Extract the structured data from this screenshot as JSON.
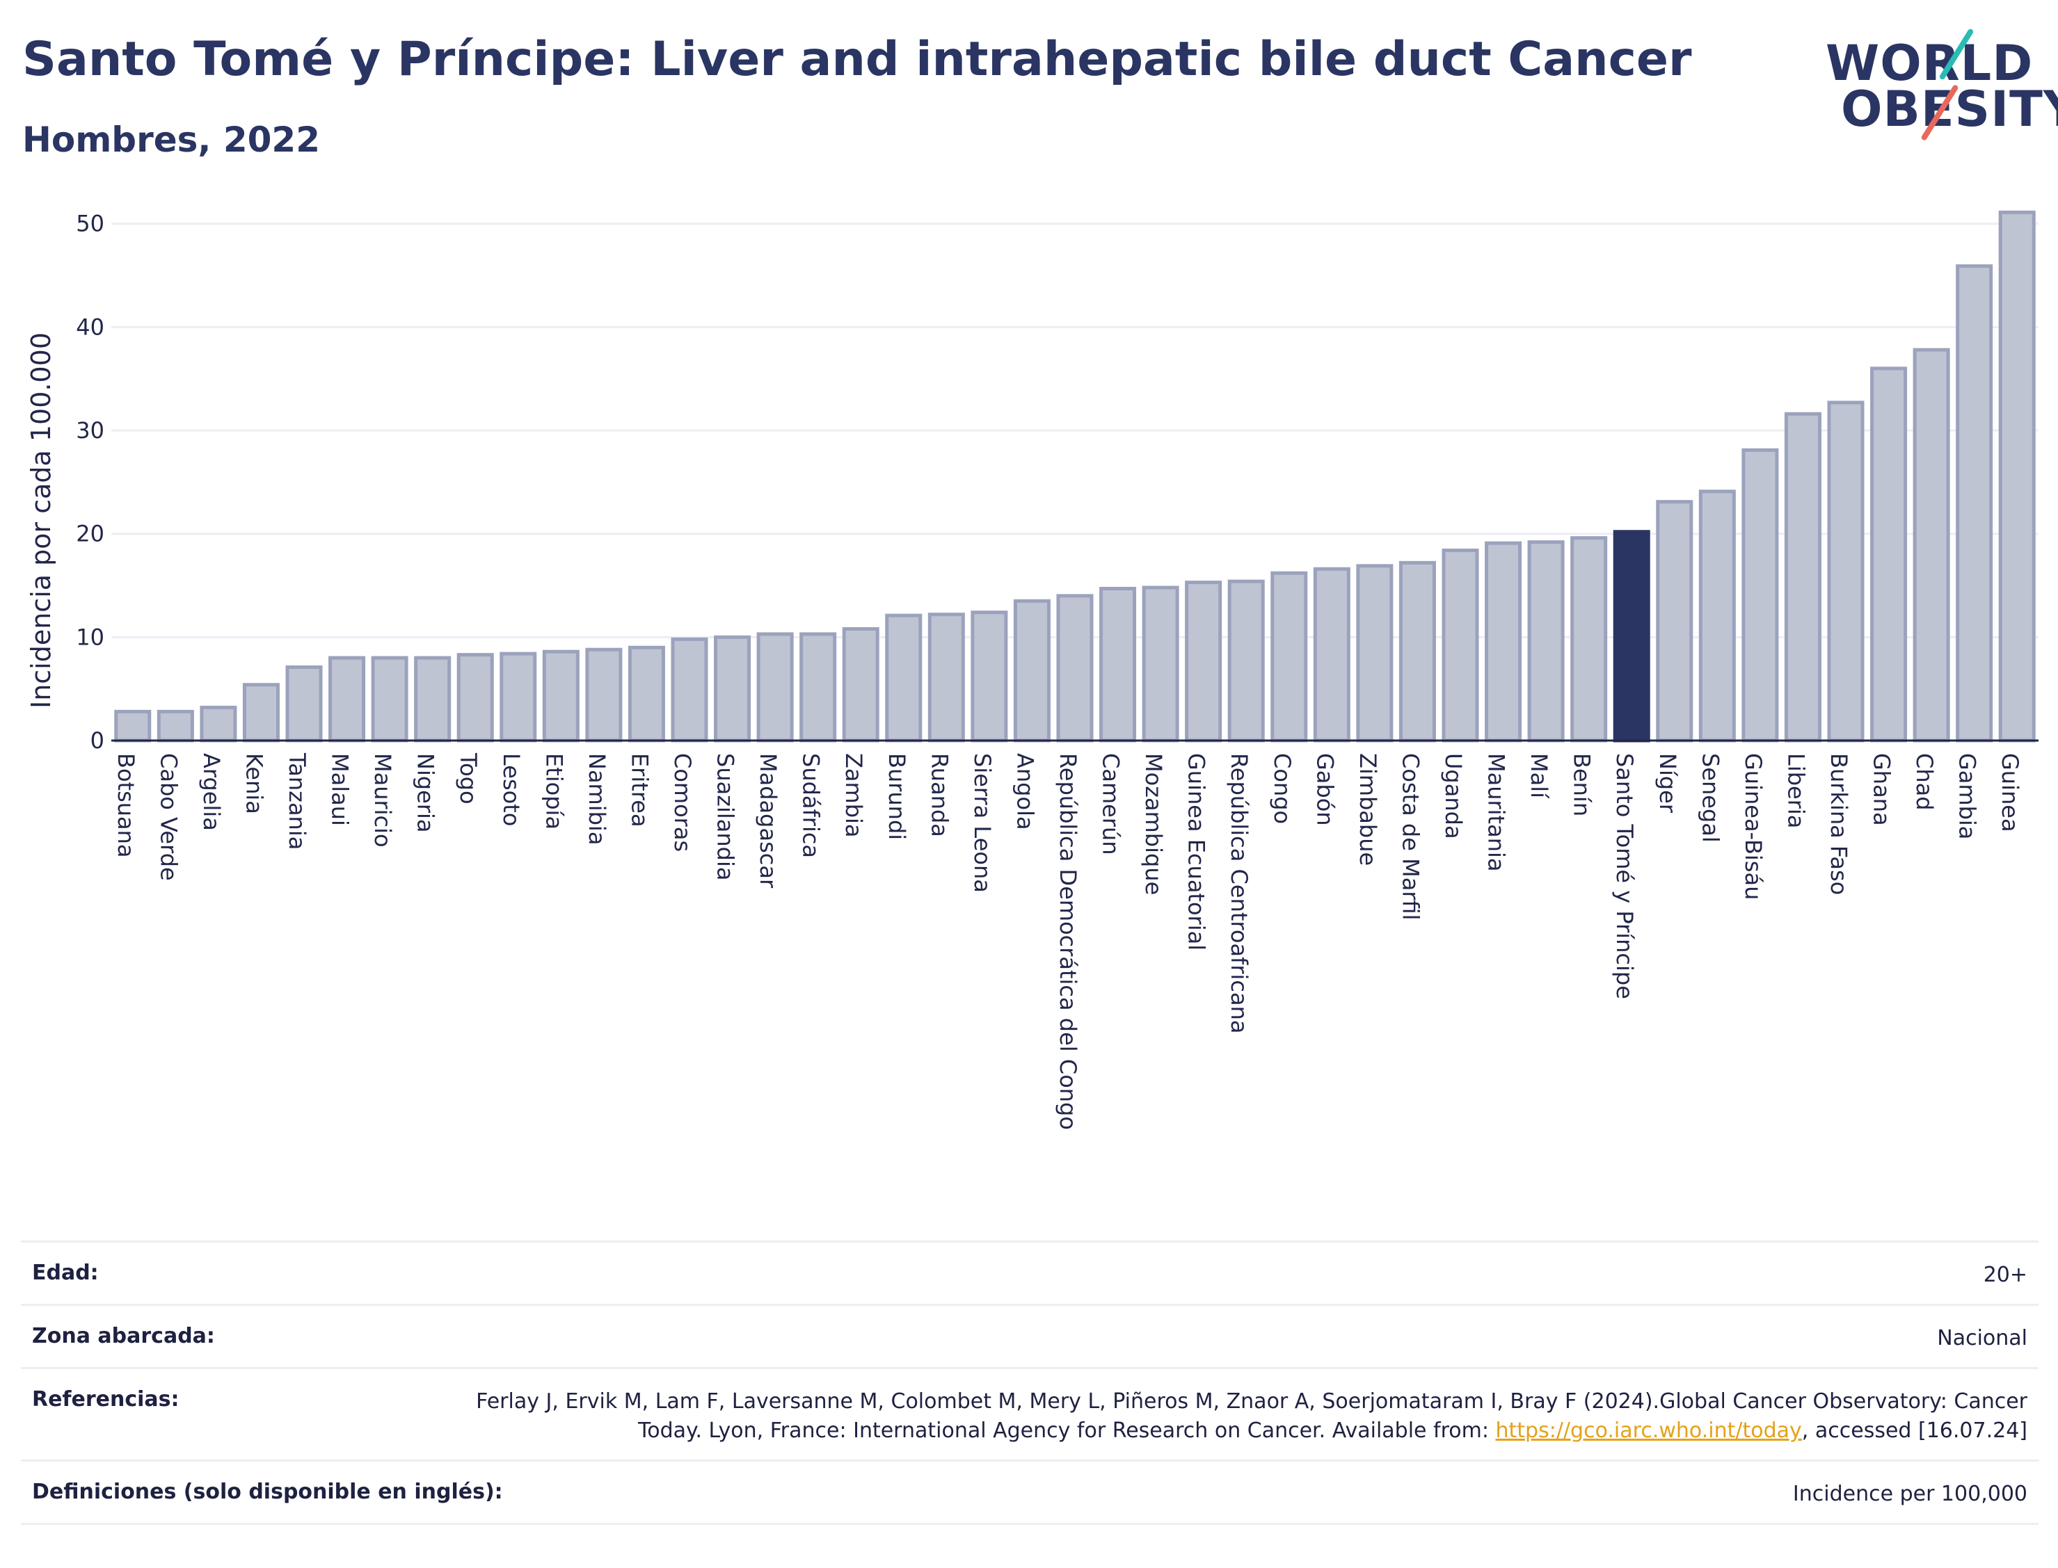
{
  "header": {
    "title": "Santo Tomé y Príncipe: Liver and intrahepatic bile duct Cancer",
    "subtitle": "Hombres, 2022"
  },
  "logo": {
    "line1": "WORLD",
    "line2": "OBESITY"
  },
  "colors": {
    "bar": "#bfc4d3",
    "bar_outline": "#9ba2bc",
    "highlight": "#2a3563",
    "gridline": "#eceef4",
    "text": "#22264a",
    "link": "#e3a21a"
  },
  "chart_data": {
    "type": "bar",
    "title": "",
    "ylabel": "Incidencia por cada 100.000",
    "xlabel": "",
    "ylim": [
      0,
      52
    ],
    "yticks": [
      0,
      10,
      20,
      30,
      40,
      50
    ],
    "grid": true,
    "highlight": "Santo Tomé y Príncipe",
    "categories": [
      "Botsuana",
      "Cabo Verde",
      "Argelia",
      "Kenia",
      "Tanzania",
      "Malaui",
      "Mauricio",
      "Nigeria",
      "Togo",
      "Lesoto",
      "Etiopía",
      "Namibia",
      "Eritrea",
      "Comoras",
      "Suazilandia",
      "Madagascar",
      "Sudáfrica",
      "Zambia",
      "Burundi",
      "Ruanda",
      "Sierra Leona",
      "Angola",
      "República Democrática del Congo",
      "Camerún",
      "Mozambique",
      "Guinea Ecuatorial",
      "República Centroafricana",
      "Congo",
      "Gabón",
      "Zimbabue",
      "Costa de Marfil",
      "Uganda",
      "Mauritania",
      "Malí",
      "Benín",
      "Santo Tomé y Príncipe",
      "Níger",
      "Senegal",
      "Guinea-Bisáu",
      "Liberia",
      "Burkina Faso",
      "Ghana",
      "Chad",
      "Gambia",
      "Guinea"
    ],
    "values": [
      2.8,
      2.8,
      3.2,
      5.4,
      7.1,
      8.0,
      8.0,
      8.0,
      8.3,
      8.4,
      8.6,
      8.8,
      9.0,
      9.8,
      10.0,
      10.3,
      10.3,
      10.8,
      12.1,
      12.2,
      12.4,
      13.5,
      14.0,
      14.7,
      14.8,
      15.3,
      15.4,
      16.2,
      16.6,
      16.9,
      17.2,
      18.4,
      19.1,
      19.2,
      19.6,
      20.2,
      23.1,
      24.1,
      28.1,
      31.6,
      32.7,
      36.0,
      37.8,
      45.9,
      51.1
    ]
  },
  "info": {
    "rows": [
      {
        "label": "Edad:",
        "value": "20+"
      },
      {
        "label": "Zona abarcada:",
        "value": "Nacional"
      },
      {
        "label": "Referencias:",
        "value_pre": "Ferlay J, Ervik M, Lam F, Laversanne M, Colombet M, Mery L, Piñeros M, Znaor A, Soerjomataram I, Bray F (2024).Global Cancer Observatory: Cancer Today. Lyon, France: International Agency for Research on Cancer. Available from: ",
        "link": "https://gco.iarc.who.int/today",
        "value_post": ", accessed [16.07.24]"
      },
      {
        "label": "Definiciones (solo disponible en inglés):",
        "value": "Incidence per 100,000"
      }
    ]
  }
}
